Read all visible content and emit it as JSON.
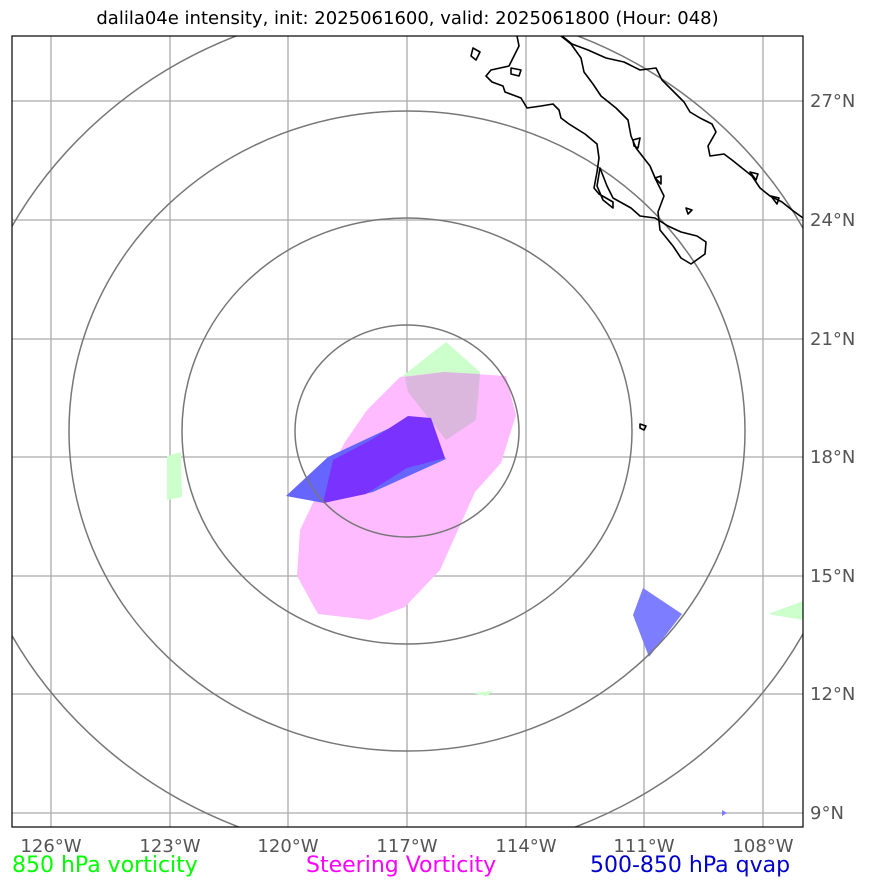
{
  "title": "dalila04e intensity, init: 2025061600, valid: 2025061800 (Hour: 048)",
  "lon_ticks": [
    "126°W",
    "123°W",
    "120°W",
    "117°W",
    "114°W",
    "111°W",
    "108°W"
  ],
  "lat_ticks": [
    "27°N",
    "24°N",
    "21°N",
    "18°N",
    "15°N",
    "12°N",
    "9°N"
  ],
  "legend": [
    {
      "label": "850 hPa vorticity",
      "color": "#00ff00"
    },
    {
      "label": "Steering Vorticity",
      "color": "#ff00ff"
    },
    {
      "label": "500-850 hPa qvap",
      "color": "#0000cc"
    }
  ],
  "colors": {
    "frame": "#000000",
    "grid": "#aaaaaa",
    "range_rings": "#777777",
    "coastline": "#000000",
    "vort850_fill": "#ccffcc",
    "steering_fill": "#ffbbff",
    "qvap_fill": "#6666ff",
    "qvap_core": "#7a33ff",
    "overlap_fill": "#dbb6dd"
  }
}
